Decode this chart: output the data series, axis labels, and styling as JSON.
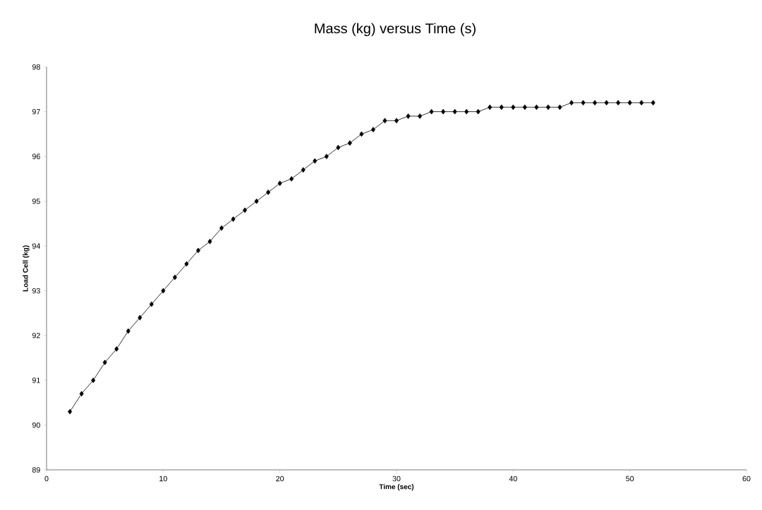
{
  "chart_data": {
    "type": "line",
    "title": "Mass (kg) versus Time (s)",
    "xlabel": "Time (sec)",
    "ylabel": "Load Cell (kg)",
    "x": [
      2,
      3,
      4,
      5,
      6,
      7,
      8,
      9,
      10,
      11,
      12,
      13,
      14,
      15,
      16,
      17,
      18,
      19,
      20,
      21,
      22,
      23,
      24,
      25,
      26,
      27,
      28,
      29,
      30,
      31,
      32,
      33,
      34,
      35,
      36,
      37,
      38,
      39,
      40,
      41,
      42,
      43,
      44,
      45,
      46,
      47,
      48,
      49,
      50,
      51,
      52
    ],
    "values": [
      90.3,
      90.7,
      91.0,
      91.4,
      91.7,
      92.1,
      92.4,
      92.7,
      93.0,
      93.3,
      93.6,
      93.9,
      94.1,
      94.4,
      94.6,
      94.8,
      95.0,
      95.2,
      95.4,
      95.5,
      95.7,
      95.9,
      96.0,
      96.2,
      96.3,
      96.5,
      96.6,
      96.8,
      96.8,
      96.9,
      96.9,
      97.0,
      97.0,
      97.0,
      97.0,
      97.0,
      97.1,
      97.1,
      97.1,
      97.1,
      97.1,
      97.1,
      97.1,
      97.2,
      97.2,
      97.2,
      97.2,
      97.2,
      97.2,
      97.2,
      97.2
    ],
    "color": "#000000",
    "marker": "diamond",
    "line_style": "solid",
    "xlim": [
      0,
      60
    ],
    "xticks": [
      0,
      10,
      20,
      30,
      40,
      50,
      60
    ],
    "ylim": [
      89,
      98
    ],
    "yticks": [
      89,
      90,
      91,
      92,
      93,
      94,
      95,
      96,
      97,
      98
    ],
    "grid": false
  }
}
